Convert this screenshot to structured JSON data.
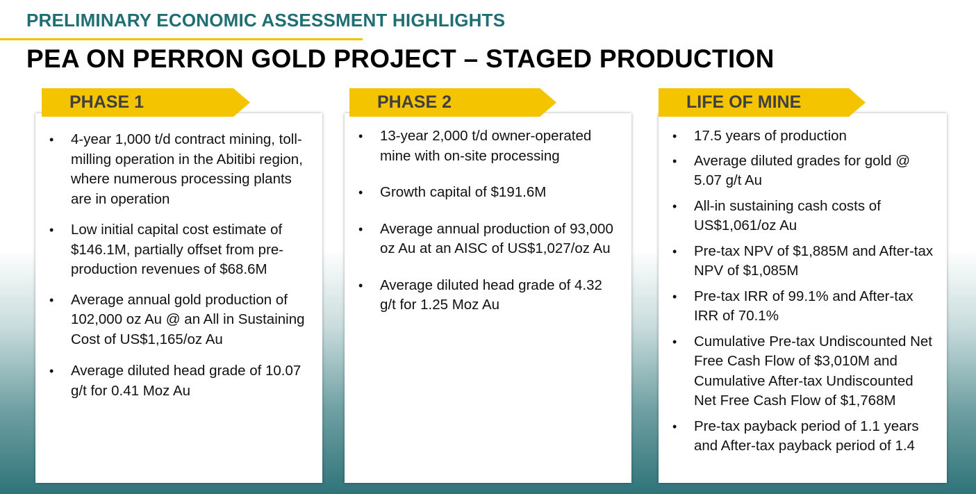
{
  "header": {
    "section_title": "PRELIMINARY ECONOMIC ASSESSMENT HIGHLIGHTS",
    "main_title": "PEA ON PERRON GOLD PROJECT – STAGED PRODUCTION"
  },
  "colors": {
    "accent_yellow": "#f5c400",
    "teal": "#1f6e73"
  },
  "phase1": {
    "label": "PHASE 1",
    "bullets": [
      "4-year 1,000 t/d contract mining, toll-milling operation in the Abitibi region, where numerous processing plants are in operation",
      "Low initial capital cost estimate of $146.1M, partially offset from pre-production revenues of $68.6M",
      "Average annual gold production of 102,000 oz Au @ an All in Sustaining Cost of US$1,165/oz Au",
      "Average diluted head grade of 10.07 g/t for 0.41 Moz Au"
    ]
  },
  "phase2": {
    "label": "PHASE 2",
    "bullets": [
      "13-year 2,000 t/d owner-operated mine with on-site processing",
      "Growth capital of $191.6M",
      "Average annual production of 93,000 oz Au at an AISC of US$1,027/oz Au",
      "Average diluted head grade of 4.32 g/t for 1.25 Moz Au"
    ]
  },
  "life_of_mine": {
    "label": "LIFE OF MINE",
    "bullets": [
      "17.5 years of production",
      "Average diluted grades for gold @ 5.07 g/t Au",
      "All-in sustaining cash costs of US$1,061/oz Au",
      "Pre-tax NPV of $1,885M and After-tax NPV of $1,085M",
      "Pre-tax IRR of 99.1% and After-tax IRR of 70.1%",
      "Cumulative Pre-tax Undiscounted Net Free Cash Flow of $3,010M and Cumulative After-tax Undiscounted Net Free Cash Flow of $1,768M",
      "Pre-tax payback period of 1.1 years and After-tax payback period of 1.4"
    ]
  }
}
